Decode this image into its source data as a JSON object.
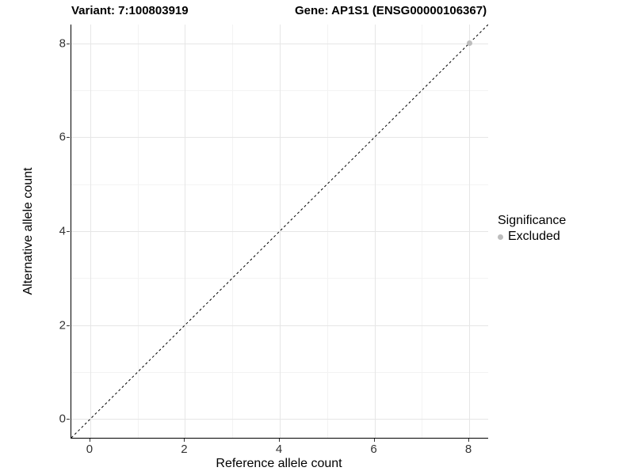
{
  "titles": {
    "variant": "Variant: 7:100803919",
    "gene": "Gene: AP1S1 (ENSG00000106367)"
  },
  "legend": {
    "title": "Significance",
    "items": [
      {
        "label": "Excluded",
        "color": "#bdbdbd"
      }
    ]
  },
  "chart_data": {
    "type": "scatter",
    "title": "Variant: 7:100803919   Gene: AP1S1 (ENSG00000106367)",
    "xlabel": "Reference allele count",
    "ylabel": "Alternative allele count",
    "xlim": [
      -0.4,
      8.4
    ],
    "ylim": [
      -0.4,
      8.4
    ],
    "x_ticks": [
      0,
      2,
      4,
      6,
      8
    ],
    "y_ticks": [
      0,
      2,
      4,
      6,
      8
    ],
    "x_minor_ticks": [
      1,
      3,
      5,
      7
    ],
    "y_minor_ticks": [
      1,
      3,
      5,
      7
    ],
    "grid": "major+minor",
    "legend_position": "right",
    "series": [
      {
        "name": "Excluded",
        "color": "#bdbdbd",
        "points": [
          {
            "x": 8,
            "y": 8
          }
        ]
      }
    ],
    "reference_line": {
      "type": "identity",
      "style": "dashed",
      "color": "#000000",
      "from": [
        -0.4,
        -0.4
      ],
      "to": [
        8.4,
        8.4
      ]
    }
  }
}
